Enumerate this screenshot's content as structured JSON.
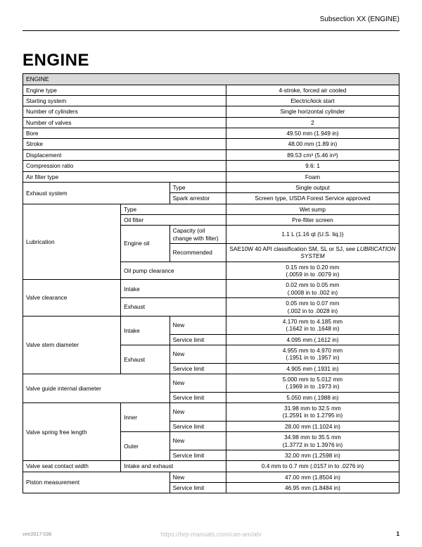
{
  "header": {
    "subsection": "Subsection XX (ENGINE)"
  },
  "title": "ENGINE",
  "section_head": "ENGINE",
  "rows": {
    "engine_type": {
      "label": "Engine type",
      "value": "4-stroke, forced air cooled"
    },
    "starting_system": {
      "label": "Starting system",
      "value": "Electric/kick start"
    },
    "num_cylinders": {
      "label": "Number of cylinders",
      "value": "Single horizontal cylinder"
    },
    "num_valves": {
      "label": "Number of valves",
      "value": "2"
    },
    "bore": {
      "label": "Bore",
      "value": "49.50 mm (1.949 in)"
    },
    "stroke": {
      "label": "Stroke",
      "value": "48.00 mm (1.89 in)"
    },
    "displacement": {
      "label": "Displacement",
      "value": "89.53 cm³ (5.46 in³)"
    },
    "compression": {
      "label": "Compression ratio",
      "value": "9.6: 1"
    },
    "air_filter": {
      "label": "Air filter type",
      "value": "Foam"
    },
    "exhaust": {
      "label": "Exhaust system",
      "type": {
        "label": "Type",
        "value": "Single output"
      },
      "spark": {
        "label": "Spark arrestor",
        "value": "Screen type, USDA Forest Service approved"
      }
    },
    "lubrication": {
      "label": "Lubrication",
      "type": {
        "label": "Type",
        "value": "Wet sump"
      },
      "oil_filter": {
        "label": "Oil filter",
        "value": "Pre-filter screen"
      },
      "engine_oil": {
        "label": "Engine oil",
        "capacity": {
          "label": "Capacity (oil change with filter)",
          "value": "1.1 L (1.16 qt (U.S. liq.))"
        },
        "recommended": {
          "label": "Recommended",
          "value_prefix": "SAE10W  40  API classification SM, SL or SJ, see ",
          "value_italic": "LUBRICATION SYSTEM"
        }
      },
      "oil_pump": {
        "label": "Oil pump clearance",
        "value": "0.15 mm to 0.20 mm\n(.0059 in to .0079 in)"
      }
    },
    "valve_clearance": {
      "label": "Valve clearance",
      "intake": {
        "label": "Intake",
        "value": "0.02 mm to 0.05 mm\n(.0008 in to .002 in)"
      },
      "exhaust": {
        "label": "Exhaust",
        "value": "0.05 mm to 0.07 mm\n(.002 in to .0028 in)"
      }
    },
    "valve_stem_diameter": {
      "label": "Valve stem diameter",
      "intake": {
        "label": "Intake",
        "new": {
          "label": "New",
          "value": "4.170 mm to 4.185 mm\n(.1642 in to .1648 in)"
        },
        "limit": {
          "label": "Service limit",
          "value": "4.095 mm (.1612 in)"
        }
      },
      "exhaust": {
        "label": "Exhaust",
        "new": {
          "label": "New",
          "value": "4.955 mm to 4.970 mm\n(.1951 in to .1957 in)"
        },
        "limit": {
          "label": "Service limit",
          "value": "4.905 mm (.1931 in)"
        }
      }
    },
    "valve_guide": {
      "label": "Valve guide internal diameter",
      "new": {
        "label": "New",
        "value": "5.000 mm to 5.012 mm\n(.1969 in to .1973 in)"
      },
      "limit": {
        "label": "Service limit",
        "value": "5.050 mm (.1988 in)"
      }
    },
    "valve_spring": {
      "label": "Valve spring free length",
      "inner": {
        "label": "Inner",
        "new": {
          "label": "New",
          "value": "31.98 mm to 32.5 mm\n(1.2591 in to 1.2795 in)"
        },
        "limit": {
          "label": "Service limit",
          "value": "28.00 mm (1.1024 in)"
        }
      },
      "outer": {
        "label": "Outer",
        "new": {
          "label": "New",
          "value": "34.98 mm to 35.5 mm\n(1.3772 in to 1.3976 in)"
        },
        "limit": {
          "label": "Service limit",
          "value": "32.00 mm (1.2598 in)"
        }
      }
    },
    "valve_seat": {
      "label": "Valve seat contact width",
      "sub": "Intake and exhaust",
      "value": "0.4 mm to 0.7 mm (.0157 in to .0276 in)"
    },
    "piston": {
      "label": "Piston measurement",
      "new": {
        "label": "New",
        "value": "47.00 mm (1.8504 in)"
      },
      "limit": {
        "label": "Service limit",
        "value": "46.95 mm (1.8484 in)"
      }
    }
  },
  "footer": {
    "doc_id": "vmr2017-036",
    "watermark": "https://brp-manuals.com/can-am/atv",
    "page": "1"
  }
}
